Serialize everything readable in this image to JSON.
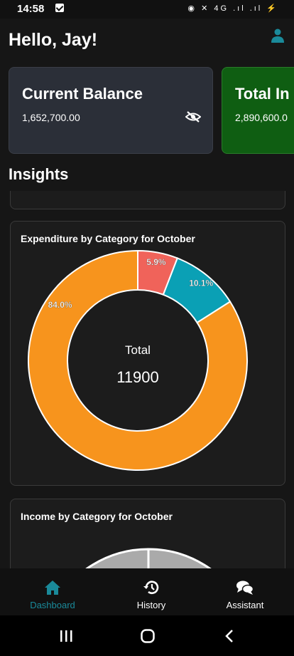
{
  "status_bar": {
    "time": "14:58",
    "indicators": "◉ ✕ 4G .ıl .ıl ⚡"
  },
  "header": {
    "greeting": "Hello, Jay!",
    "profile_icon": "person-icon"
  },
  "balance_cards": [
    {
      "title": "Current Balance",
      "amount": "1,652,700.00",
      "color": "#2b2f38"
    },
    {
      "title": "Total In",
      "amount": "2,890,600.0",
      "color": "#0f5e12"
    }
  ],
  "insights": {
    "title": "Insights"
  },
  "expenditure_chart": {
    "title": "Expenditure by Category for October",
    "center_label": "Total",
    "center_value": "11900"
  },
  "income_chart": {
    "title": "Income by Category for October"
  },
  "bottom_nav": [
    {
      "label": "Dashboard",
      "icon": "home-icon",
      "active": true
    },
    {
      "label": "History",
      "icon": "history-icon",
      "active": false
    },
    {
      "label": "Assistant",
      "icon": "chat-icon",
      "active": false
    }
  ],
  "colors": {
    "accent": "#1a8a9a",
    "orange": "#f7941d",
    "red": "#f0635a",
    "teal": "#0aa0b5",
    "grey": "#aaaaaa"
  },
  "chart_data": [
    {
      "type": "pie",
      "title": "Expenditure by Category for October",
      "categories": [
        "",
        "",
        ""
      ],
      "values": [
        5.9,
        10.1,
        84.0
      ],
      "labels": [
        "5.9%",
        "10.1%",
        "84.0%"
      ],
      "colors": [
        "#f0635a",
        "#0aa0b5",
        "#f7941d"
      ],
      "center_label": "Total",
      "center_value": 11900
    }
  ]
}
